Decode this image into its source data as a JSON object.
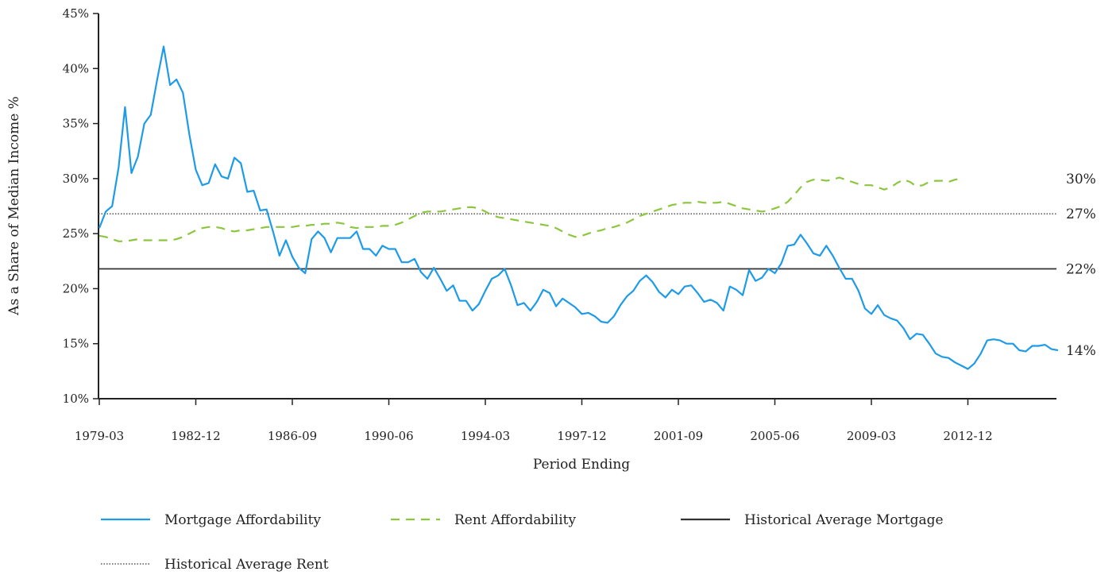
{
  "chart_data": {
    "type": "line",
    "title": "",
    "xlabel": "Period Ending",
    "ylabel": "As a Share of Median Income %",
    "ylim": [
      10,
      45
    ],
    "yticks": [
      "10%",
      "15%",
      "20%",
      "25%",
      "30%",
      "35%",
      "40%",
      "45%"
    ],
    "xticks": [
      "1979-03",
      "1982-12",
      "1986-09",
      "1990-06",
      "1994-03",
      "1997-12",
      "2001-09",
      "2005-06",
      "2009-03",
      "2012-12"
    ],
    "grid": false,
    "legend_position": "bottom",
    "x_start": "1979-03",
    "x_step": "quarterly",
    "series": [
      {
        "name": "Mortgage Affordability",
        "style": "solid",
        "color": "#1e9be8",
        "end_label": "14%",
        "values": [
          25.5,
          27.0,
          27.5,
          31.0,
          36.5,
          30.5,
          32.0,
          35.0,
          35.8,
          39.0,
          42.0,
          38.5,
          39.0,
          37.8,
          34.0,
          30.8,
          29.4,
          29.6,
          31.3,
          30.2,
          30.0,
          31.9,
          31.4,
          28.8,
          28.9,
          27.1,
          27.2,
          25.2,
          23.0,
          24.4,
          22.9,
          21.9,
          21.4,
          24.5,
          25.2,
          24.6,
          23.3,
          24.6,
          24.6,
          24.6,
          25.2,
          23.6,
          23.6,
          23.0,
          23.9,
          23.6,
          23.6,
          22.4,
          22.4,
          22.7,
          21.5,
          20.9,
          21.9,
          20.9,
          19.8,
          20.3,
          18.9,
          18.9,
          18.0,
          18.6,
          19.8,
          20.9,
          21.2,
          21.8,
          20.3,
          18.5,
          18.7,
          18.0,
          18.8,
          19.9,
          19.6,
          18.4,
          19.1,
          18.7,
          18.3,
          17.7,
          17.8,
          17.5,
          17.0,
          16.9,
          17.5,
          18.5,
          19.3,
          19.8,
          20.7,
          21.2,
          20.6,
          19.7,
          19.2,
          19.9,
          19.5,
          20.2,
          20.3,
          19.6,
          18.8,
          19.0,
          18.7,
          18.0,
          20.2,
          19.9,
          19.4,
          21.7,
          20.7,
          21.0,
          21.8,
          21.4,
          22.3,
          23.9,
          24.0,
          24.9,
          24.1,
          23.2,
          23.0,
          23.9,
          23.0,
          21.9,
          20.9,
          20.9,
          19.8,
          18.2,
          17.7,
          18.5,
          17.6,
          17.3,
          17.1,
          16.4,
          15.4,
          15.9,
          15.8,
          15.0,
          14.1,
          13.8,
          13.7,
          13.3,
          13.0,
          12.7,
          13.2,
          14.1,
          15.3,
          15.4,
          15.3,
          15.0,
          15.0,
          14.4,
          14.3,
          14.8,
          14.8,
          14.9,
          14.5,
          14.4
        ]
      },
      {
        "name": "Rent Affordability",
        "style": "dashed",
        "color": "#8cc63f",
        "end_label": "30%",
        "values": [
          24.8,
          24.7,
          24.5,
          24.3,
          24.3,
          24.4,
          24.5,
          24.4,
          24.4,
          24.4,
          24.4,
          24.4,
          24.5,
          24.7,
          25.0,
          25.3,
          25.5,
          25.6,
          25.6,
          25.5,
          25.3,
          25.2,
          25.3,
          25.3,
          25.4,
          25.5,
          25.6,
          25.6,
          25.6,
          25.6,
          25.6,
          25.7,
          25.7,
          25.8,
          25.8,
          25.9,
          25.9,
          26.0,
          25.9,
          25.6,
          25.5,
          25.6,
          25.6,
          25.6,
          25.7,
          25.7,
          25.8,
          26.0,
          26.3,
          26.6,
          26.9,
          27.0,
          27.0,
          27.0,
          27.1,
          27.2,
          27.3,
          27.4,
          27.4,
          27.3,
          27.0,
          26.7,
          26.5,
          26.4,
          26.3,
          26.2,
          26.1,
          26.0,
          25.9,
          25.8,
          25.7,
          25.5,
          25.2,
          24.9,
          24.7,
          24.8,
          25.0,
          25.2,
          25.3,
          25.5,
          25.6,
          25.8,
          26.0,
          26.3,
          26.6,
          26.8,
          27.0,
          27.2,
          27.4,
          27.6,
          27.7,
          27.8,
          27.8,
          27.9,
          27.8,
          27.8,
          27.8,
          27.9,
          27.7,
          27.5,
          27.3,
          27.2,
          27.1,
          27.0,
          27.1,
          27.3,
          27.5,
          27.9,
          28.5,
          29.2,
          29.7,
          29.9,
          29.9,
          29.8,
          29.9,
          30.1,
          29.9,
          29.7,
          29.5,
          29.4,
          29.4,
          29.2,
          29.0,
          29.2,
          29.6,
          29.9,
          29.7,
          29.3,
          29.4,
          29.7,
          29.8,
          29.8,
          29.7,
          29.9,
          30.0
        ]
      },
      {
        "name": "Historical Average Mortgage",
        "style": "solid",
        "color": "#333333",
        "end_label": "22%",
        "value": 21.8
      },
      {
        "name": "Historical Average Rent",
        "style": "dotted",
        "color": "#555555",
        "end_label": "27%",
        "value": 26.8
      }
    ]
  }
}
